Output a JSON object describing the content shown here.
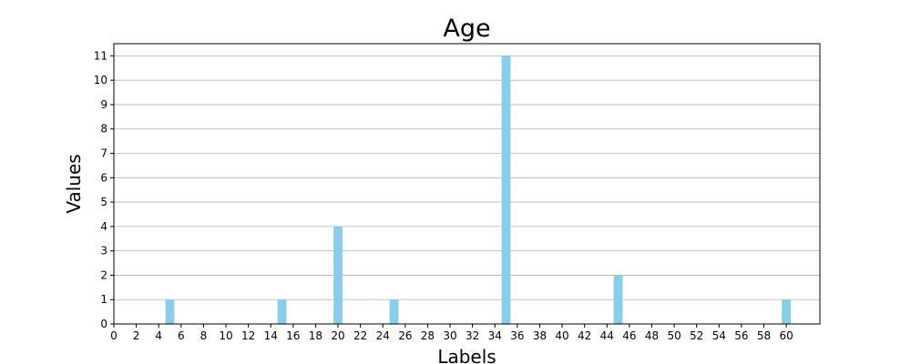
{
  "chart_data": {
    "type": "bar",
    "title": "Age",
    "xlabel": "Labels",
    "ylabel": "Values",
    "x": [
      5,
      15,
      20,
      25,
      35,
      45,
      60
    ],
    "values": [
      1,
      1,
      4,
      1,
      11,
      2,
      1
    ],
    "xlim": [
      0,
      63
    ],
    "ylim": [
      0,
      11.5
    ],
    "xticks": [
      0,
      2,
      4,
      6,
      8,
      10,
      12,
      14,
      16,
      18,
      20,
      22,
      24,
      26,
      28,
      30,
      32,
      34,
      36,
      38,
      40,
      42,
      44,
      46,
      48,
      50,
      52,
      54,
      56,
      58,
      60
    ],
    "yticks": [
      0,
      1,
      2,
      3,
      4,
      5,
      6,
      7,
      8,
      9,
      10,
      11
    ],
    "bar_width": 0.8,
    "grid": "y",
    "bar_color": "#87CEEB",
    "grid_color": "#b0b0b0"
  }
}
